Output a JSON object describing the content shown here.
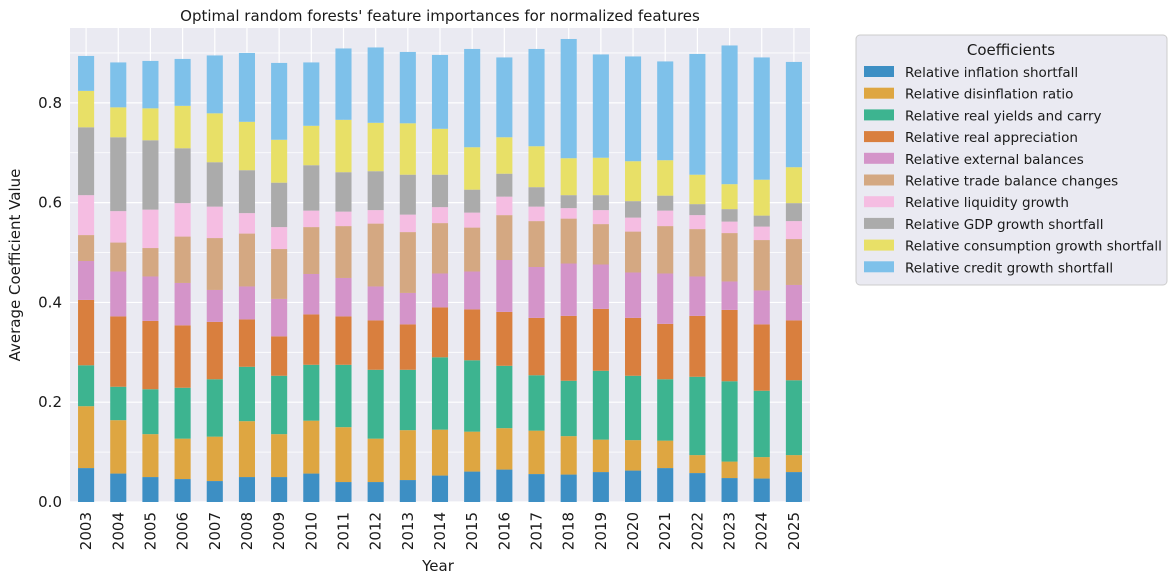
{
  "chart_data": {
    "type": "bar",
    "stacked": true,
    "title": "Optimal random forests' feature importances for normalized features",
    "xlabel": "Year",
    "ylabel": "Average Coefficient Value",
    "ylim": [
      0,
      0.95
    ],
    "yticks": [
      0.0,
      0.2,
      0.4,
      0.6,
      0.8
    ],
    "ytick_labels": [
      "0.0",
      "0.2",
      "0.4",
      "0.6",
      "0.8"
    ],
    "grid": true,
    "legend_title": "Coefficients",
    "legend_position": "outside-right-top",
    "categories": [
      "2003",
      "2004",
      "2005",
      "2006",
      "2007",
      "2008",
      "2009",
      "2010",
      "2011",
      "2012",
      "2013",
      "2014",
      "2015",
      "2016",
      "2017",
      "2018",
      "2019",
      "2020",
      "2021",
      "2022",
      "2023",
      "2024",
      "2025"
    ],
    "series": [
      {
        "name": "Relative inflation shortfall",
        "color": "#3d8fc4",
        "values": [
          0.068,
          0.057,
          0.05,
          0.046,
          0.042,
          0.05,
          0.05,
          0.057,
          0.04,
          0.04,
          0.044,
          0.053,
          0.061,
          0.065,
          0.056,
          0.055,
          0.06,
          0.063,
          0.068,
          0.058,
          0.048,
          0.047,
          0.06
        ]
      },
      {
        "name": "Relative disinflation ratio",
        "color": "#dea641",
        "values": [
          0.124,
          0.107,
          0.086,
          0.081,
          0.089,
          0.112,
          0.086,
          0.106,
          0.11,
          0.087,
          0.1,
          0.092,
          0.08,
          0.083,
          0.087,
          0.077,
          0.065,
          0.061,
          0.055,
          0.036,
          0.033,
          0.043,
          0.034
        ]
      },
      {
        "name": "Relative real yields and carry",
        "color": "#3db490",
        "values": [
          0.082,
          0.067,
          0.09,
          0.102,
          0.115,
          0.109,
          0.117,
          0.112,
          0.125,
          0.138,
          0.121,
          0.145,
          0.143,
          0.125,
          0.111,
          0.111,
          0.138,
          0.129,
          0.123,
          0.157,
          0.161,
          0.133,
          0.15
        ]
      },
      {
        "name": "Relative real appreciation",
        "color": "#d97f3e",
        "values": [
          0.131,
          0.141,
          0.137,
          0.125,
          0.115,
          0.095,
          0.079,
          0.101,
          0.097,
          0.099,
          0.091,
          0.1,
          0.102,
          0.108,
          0.115,
          0.13,
          0.124,
          0.116,
          0.111,
          0.122,
          0.143,
          0.133,
          0.12
        ]
      },
      {
        "name": "Relative external balances",
        "color": "#d494c9",
        "values": [
          0.078,
          0.09,
          0.089,
          0.085,
          0.064,
          0.066,
          0.075,
          0.081,
          0.077,
          0.068,
          0.063,
          0.068,
          0.076,
          0.104,
          0.102,
          0.105,
          0.089,
          0.091,
          0.101,
          0.079,
          0.057,
          0.068,
          0.071
        ]
      },
      {
        "name": "Relative trade balance changes",
        "color": "#d4a882",
        "values": [
          0.052,
          0.058,
          0.057,
          0.093,
          0.104,
          0.106,
          0.1,
          0.094,
          0.104,
          0.126,
          0.122,
          0.101,
          0.088,
          0.09,
          0.092,
          0.09,
          0.081,
          0.082,
          0.095,
          0.095,
          0.097,
          0.101,
          0.092
        ]
      },
      {
        "name": "Relative liquidity growth",
        "color": "#f5bde2",
        "values": [
          0.08,
          0.063,
          0.077,
          0.067,
          0.063,
          0.041,
          0.044,
          0.033,
          0.029,
          0.027,
          0.035,
          0.032,
          0.03,
          0.037,
          0.029,
          0.021,
          0.028,
          0.028,
          0.031,
          0.028,
          0.023,
          0.027,
          0.036
        ]
      },
      {
        "name": "Relative GDP growth shortfall",
        "color": "#ababab",
        "values": [
          0.136,
          0.148,
          0.139,
          0.11,
          0.089,
          0.086,
          0.089,
          0.091,
          0.079,
          0.078,
          0.08,
          0.065,
          0.046,
          0.046,
          0.039,
          0.026,
          0.03,
          0.033,
          0.03,
          0.022,
          0.025,
          0.022,
          0.036
        ]
      },
      {
        "name": "Relative consumption growth shortfall",
        "color": "#e8e067",
        "values": [
          0.073,
          0.06,
          0.064,
          0.085,
          0.098,
          0.097,
          0.086,
          0.079,
          0.105,
          0.097,
          0.103,
          0.092,
          0.085,
          0.073,
          0.082,
          0.074,
          0.075,
          0.08,
          0.071,
          0.059,
          0.05,
          0.072,
          0.072
        ]
      },
      {
        "name": "Relative credit growth shortfall",
        "color": "#7ec1ea",
        "values": [
          0.07,
          0.09,
          0.095,
          0.094,
          0.116,
          0.138,
          0.154,
          0.127,
          0.143,
          0.151,
          0.143,
          0.148,
          0.197,
          0.16,
          0.195,
          0.239,
          0.207,
          0.21,
          0.198,
          0.242,
          0.278,
          0.245,
          0.211
        ]
      }
    ]
  }
}
